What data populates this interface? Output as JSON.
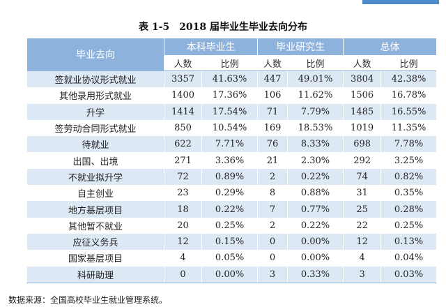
{
  "title": "表 1-5　2018 届毕业生毕业去向分布",
  "table": {
    "corner": "毕业去向",
    "groups": [
      "本科毕业生",
      "毕业研究生",
      "总体"
    ],
    "subheaders": [
      "人数",
      "比例",
      "人数",
      "比例",
      "人数",
      "比例"
    ],
    "rows": [
      [
        "签就业协议形式就业",
        "3357",
        "41.63%",
        "447",
        "49.01%",
        "3804",
        "42.38%"
      ],
      [
        "其他录用形式就业",
        "1400",
        "17.36%",
        "106",
        "11.62%",
        "1506",
        "16.78%"
      ],
      [
        "升学",
        "1414",
        "17.54%",
        "71",
        "7.79%",
        "1485",
        "16.55%"
      ],
      [
        "签劳动合同形式就业",
        "850",
        "10.54%",
        "169",
        "18.53%",
        "1019",
        "11.35%"
      ],
      [
        "待就业",
        "622",
        "7.71%",
        "76",
        "8.33%",
        "698",
        "7.78%"
      ],
      [
        "出国、出境",
        "271",
        "3.36%",
        "21",
        "2.30%",
        "292",
        "3.25%"
      ],
      [
        "不就业拟升学",
        "72",
        "0.89%",
        "2",
        "0.22%",
        "74",
        "0.82%"
      ],
      [
        "自主创业",
        "23",
        "0.29%",
        "8",
        "0.88%",
        "31",
        "0.35%"
      ],
      [
        "地方基层项目",
        "18",
        "0.22%",
        "7",
        "0.77%",
        "25",
        "0.28%"
      ],
      [
        "其他暂不就业",
        "20",
        "0.25%",
        "2",
        "0.22%",
        "22",
        "0.25%"
      ],
      [
        "应征义务兵",
        "12",
        "0.15%",
        "0",
        "0.00%",
        "12",
        "0.13%"
      ],
      [
        "国家基层项目",
        "4",
        "0.05%",
        "0",
        "0.00%",
        "4",
        "0.04%"
      ],
      [
        "科研助理",
        "0",
        "0.00%",
        "3",
        "0.33%",
        "3",
        "0.03%"
      ]
    ]
  },
  "source": "数据来源：全国高校毕业生就业管理系统。"
}
